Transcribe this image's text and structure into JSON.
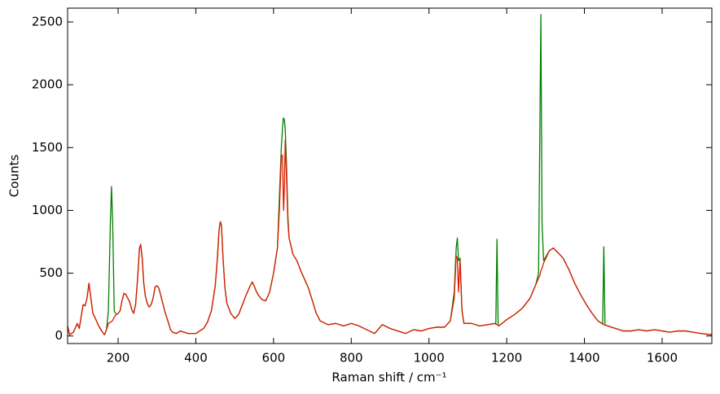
{
  "chart_data": {
    "type": "line",
    "xlabel": "Raman shift / cm⁻¹",
    "ylabel": "Counts",
    "x": [
      70,
      75,
      85,
      95,
      100,
      110,
      115,
      120,
      125,
      130,
      135,
      140,
      150,
      160,
      165,
      170,
      175,
      180,
      183,
      185,
      186,
      190,
      195,
      200,
      205,
      210,
      215,
      220,
      225,
      230,
      235,
      240,
      245,
      250,
      255,
      258,
      262,
      266,
      270,
      275,
      280,
      285,
      290,
      295,
      300,
      305,
      310,
      315,
      320,
      325,
      330,
      335,
      340,
      350,
      360,
      380,
      400,
      410,
      420,
      430,
      440,
      450,
      455,
      460,
      463,
      466,
      470,
      475,
      480,
      490,
      500,
      510,
      520,
      530,
      540,
      545,
      550,
      555,
      560,
      570,
      580,
      590,
      600,
      610,
      615,
      620,
      623,
      625,
      626,
      628,
      630,
      633,
      637,
      640,
      650,
      660,
      670,
      680,
      690,
      700,
      710,
      720,
      740,
      760,
      780,
      800,
      820,
      840,
      860,
      880,
      900,
      920,
      940,
      960,
      980,
      1000,
      1020,
      1040,
      1055,
      1065,
      1070,
      1073,
      1076,
      1080,
      1085,
      1090,
      1110,
      1130,
      1150,
      1170,
      1172,
      1175,
      1178,
      1180,
      1200,
      1220,
      1240,
      1260,
      1275,
      1282,
      1285,
      1288,
      1291,
      1295,
      1310,
      1320,
      1330,
      1345,
      1360,
      1375,
      1390,
      1405,
      1420,
      1435,
      1447,
      1450,
      1453,
      1460,
      1480,
      1500,
      1520,
      1540,
      1560,
      1580,
      1600,
      1620,
      1640,
      1660,
      1680,
      1700,
      1728
    ],
    "series": [
      {
        "color": "#007f00",
        "values": [
          80,
          10,
          30,
          100,
          60,
          250,
          240,
          300,
          420,
          300,
          180,
          150,
          80,
          30,
          10,
          50,
          200,
          900,
          1190,
          1000,
          900,
          200,
          170,
          180,
          200,
          280,
          340,
          330,
          300,
          270,
          210,
          180,
          250,
          450,
          700,
          730,
          620,
          420,
          320,
          260,
          230,
          250,
          300,
          390,
          400,
          380,
          320,
          260,
          200,
          150,
          100,
          50,
          30,
          20,
          40,
          20,
          20,
          40,
          60,
          110,
          200,
          400,
          600,
          850,
          910,
          880,
          620,
          380,
          260,
          180,
          140,
          170,
          250,
          330,
          400,
          430,
          400,
          360,
          330,
          290,
          280,
          350,
          500,
          700,
          1100,
          1500,
          1650,
          1730,
          1735,
          1720,
          1650,
          1400,
          950,
          780,
          650,
          600,
          520,
          450,
          380,
          280,
          180,
          120,
          90,
          100,
          80,
          100,
          80,
          50,
          20,
          90,
          60,
          40,
          20,
          50,
          40,
          60,
          70,
          70,
          120,
          350,
          700,
          780,
          600,
          620,
          200,
          100,
          100,
          80,
          90,
          100,
          95,
          770,
          85,
          80,
          130,
          170,
          220,
          300,
          410,
          500,
          1500,
          2560,
          900,
          600,
          680,
          700,
          670,
          620,
          530,
          420,
          330,
          250,
          180,
          120,
          95,
          710,
          88,
          80,
          60,
          40,
          40,
          50,
          40,
          50,
          40,
          30,
          40,
          40,
          30,
          20,
          10
        ]
      },
      {
        "color": "#e01a00",
        "values": [
          80,
          10,
          30,
          100,
          60,
          250,
          240,
          300,
          420,
          300,
          180,
          150,
          80,
          30,
          10,
          50,
          100,
          110,
          115,
          120,
          125,
          150,
          170,
          180,
          200,
          280,
          340,
          330,
          300,
          270,
          210,
          180,
          250,
          450,
          700,
          730,
          620,
          420,
          320,
          260,
          230,
          250,
          300,
          390,
          400,
          380,
          320,
          260,
          200,
          150,
          100,
          50,
          30,
          20,
          40,
          20,
          20,
          40,
          60,
          110,
          200,
          400,
          600,
          850,
          910,
          880,
          620,
          380,
          260,
          180,
          140,
          170,
          250,
          330,
          400,
          430,
          400,
          360,
          330,
          290,
          280,
          350,
          500,
          700,
          1000,
          1430,
          1440,
          1100,
          1000,
          1200,
          1560,
          1300,
          900,
          780,
          650,
          600,
          520,
          450,
          380,
          280,
          180,
          120,
          90,
          100,
          80,
          100,
          80,
          50,
          20,
          90,
          60,
          40,
          20,
          50,
          40,
          60,
          70,
          70,
          120,
          300,
          640,
          620,
          350,
          600,
          200,
          100,
          100,
          80,
          90,
          100,
          95,
          90,
          85,
          80,
          130,
          170,
          220,
          300,
          410,
          460,
          480,
          520,
          540,
          580,
          680,
          700,
          670,
          620,
          530,
          420,
          330,
          250,
          180,
          120,
          95,
          90,
          88,
          80,
          60,
          40,
          40,
          50,
          40,
          50,
          40,
          30,
          40,
          40,
          30,
          20,
          10
        ]
      }
    ],
    "xlim": [
      70,
      1728
    ],
    "ylim": [
      -60,
      2610
    ],
    "xticks": [
      200,
      400,
      600,
      800,
      1000,
      1200,
      1400,
      1600
    ],
    "yticks": [
      0,
      500,
      1000,
      1500,
      2000,
      2500
    ],
    "grid": false
  }
}
